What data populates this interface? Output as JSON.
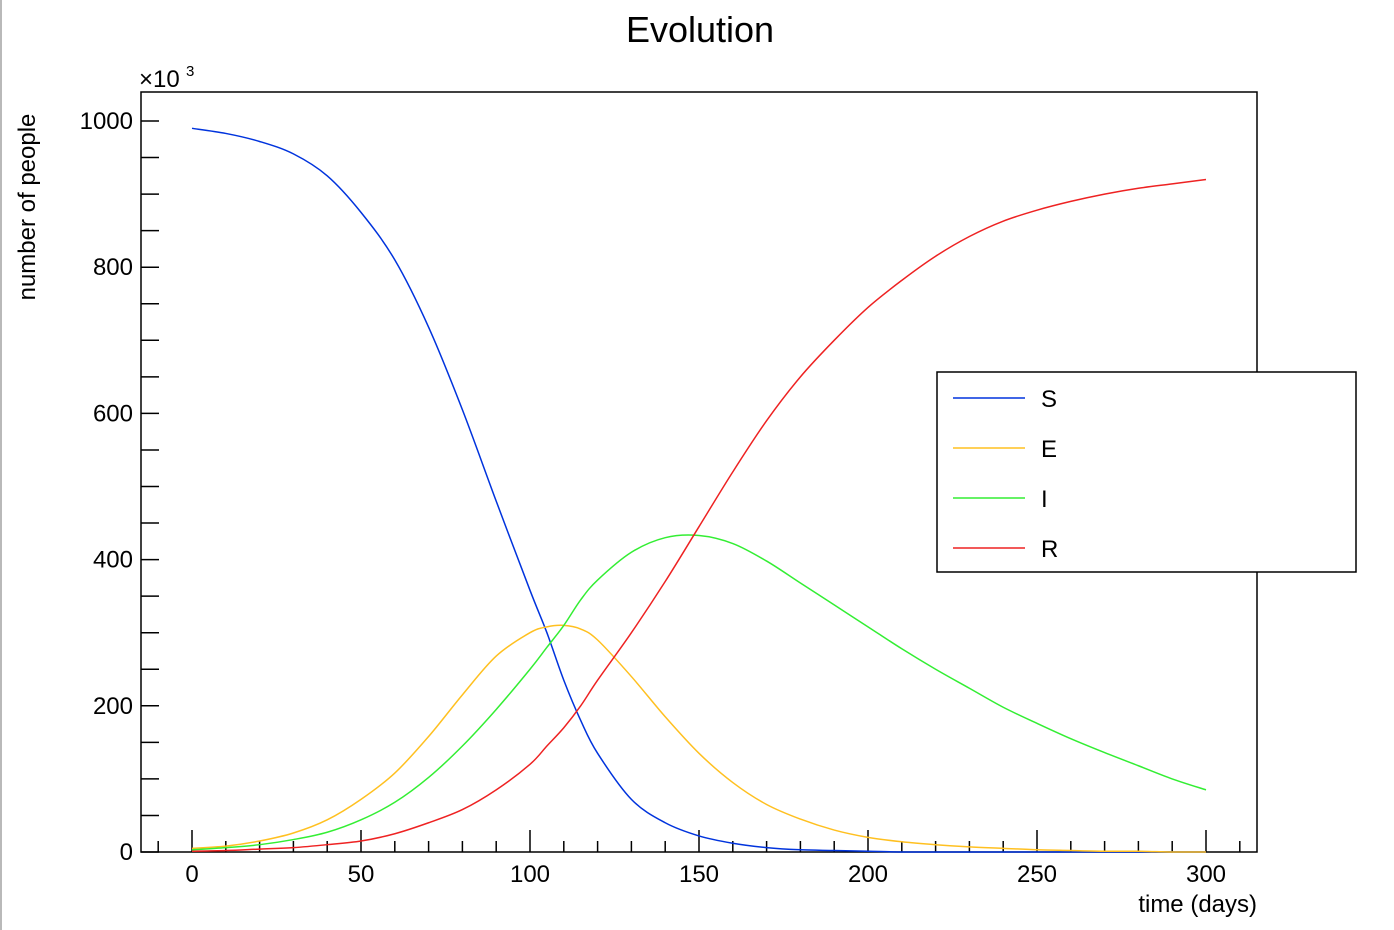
{
  "chart_data": {
    "type": "line",
    "title": "Evolution",
    "xlabel": "time (days)",
    "ylabel": "number of people",
    "y_multiplier_label": "×10",
    "y_multiplier_exponent": "3",
    "xlim": [
      -10,
      315
    ],
    "ylim": [
      0,
      1040
    ],
    "x_ticks": [
      0,
      50,
      100,
      150,
      200,
      250,
      300
    ],
    "x_tick_labels": [
      "0",
      "50",
      "100",
      "150",
      "200",
      "250",
      "300"
    ],
    "y_ticks": [
      0,
      200,
      400,
      600,
      800,
      1000
    ],
    "y_tick_labels": [
      "0",
      "200",
      "400",
      "600",
      "800",
      "1000"
    ],
    "grid": false,
    "legend_position": "right",
    "x": [
      0,
      10,
      20,
      30,
      40,
      50,
      60,
      70,
      80,
      90,
      100,
      105,
      110,
      115,
      120,
      130,
      140,
      150,
      160,
      170,
      180,
      190,
      200,
      210,
      220,
      230,
      240,
      250,
      260,
      270,
      280,
      290,
      300
    ],
    "series": [
      {
        "name": "S",
        "color": "#0033dd",
        "values": [
          990,
          983,
          972,
          955,
          925,
          875,
          810,
          718,
          605,
          480,
          358,
          300,
          235,
          180,
          135,
          72,
          40,
          22,
          12,
          6,
          3,
          2,
          1,
          0,
          0,
          0,
          0,
          0,
          0,
          0,
          0,
          0,
          0
        ]
      },
      {
        "name": "E",
        "color": "#ffc020",
        "values": [
          5,
          8,
          15,
          26,
          44,
          72,
          108,
          158,
          215,
          268,
          300,
          308,
          310,
          305,
          290,
          240,
          185,
          135,
          95,
          65,
          45,
          30,
          20,
          14,
          10,
          7,
          5,
          3,
          2,
          1,
          1,
          0,
          0
        ]
      },
      {
        "name": "I",
        "color": "#33ee33",
        "values": [
          3,
          6,
          10,
          17,
          27,
          44,
          68,
          102,
          145,
          195,
          250,
          280,
          310,
          345,
          372,
          410,
          430,
          433,
          422,
          398,
          368,
          338,
          308,
          278,
          250,
          224,
          198,
          176,
          155,
          136,
          118,
          100,
          85
        ]
      },
      {
        "name": "R",
        "color": "#ee2222",
        "values": [
          1,
          2,
          4,
          6,
          10,
          15,
          25,
          40,
          58,
          85,
          120,
          145,
          170,
          200,
          235,
          300,
          370,
          445,
          520,
          590,
          650,
          700,
          745,
          782,
          815,
          842,
          863,
          878,
          890,
          900,
          908,
          914,
          920
        ]
      }
    ]
  }
}
